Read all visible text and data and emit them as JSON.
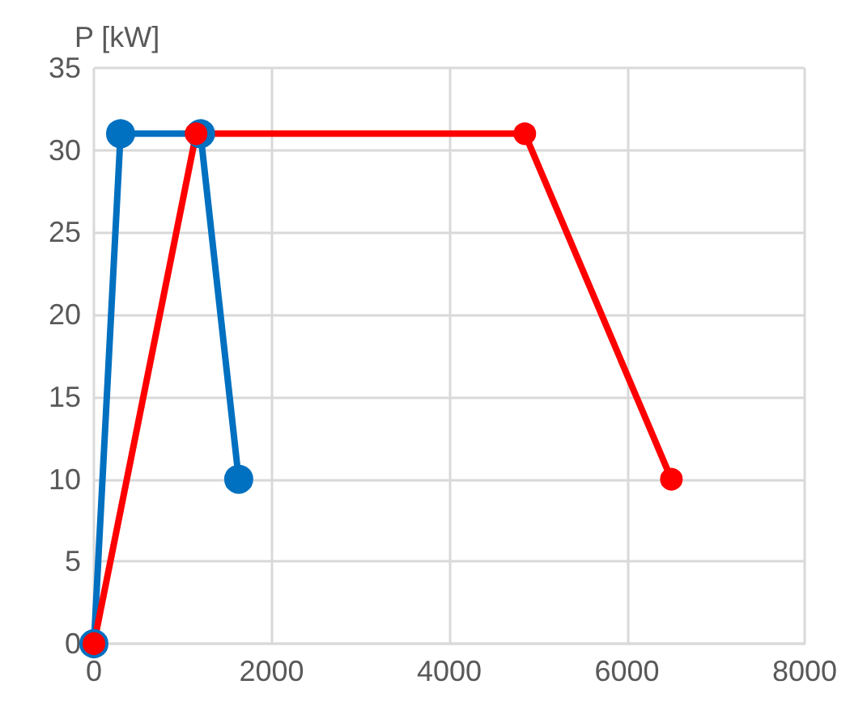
{
  "chart_data": {
    "type": "line",
    "ylabel": "P [kW]",
    "xlim": [
      0,
      8000
    ],
    "xticks": [
      0,
      2000,
      4000,
      6000,
      8000
    ],
    "ylim": [
      0,
      35
    ],
    "yticks": [
      0,
      5,
      10,
      15,
      20,
      25,
      30,
      35
    ],
    "grid": true,
    "marker": "circle",
    "line_style": "solid",
    "series": [
      {
        "color": "#0070c0",
        "x": [
          0,
          300,
          1200,
          1630
        ],
        "values": [
          0,
          31,
          31,
          10
        ]
      },
      {
        "color": "#ff0000",
        "x": [
          0,
          1150,
          4850,
          6500
        ],
        "values": [
          0,
          31,
          31,
          10
        ]
      }
    ]
  }
}
